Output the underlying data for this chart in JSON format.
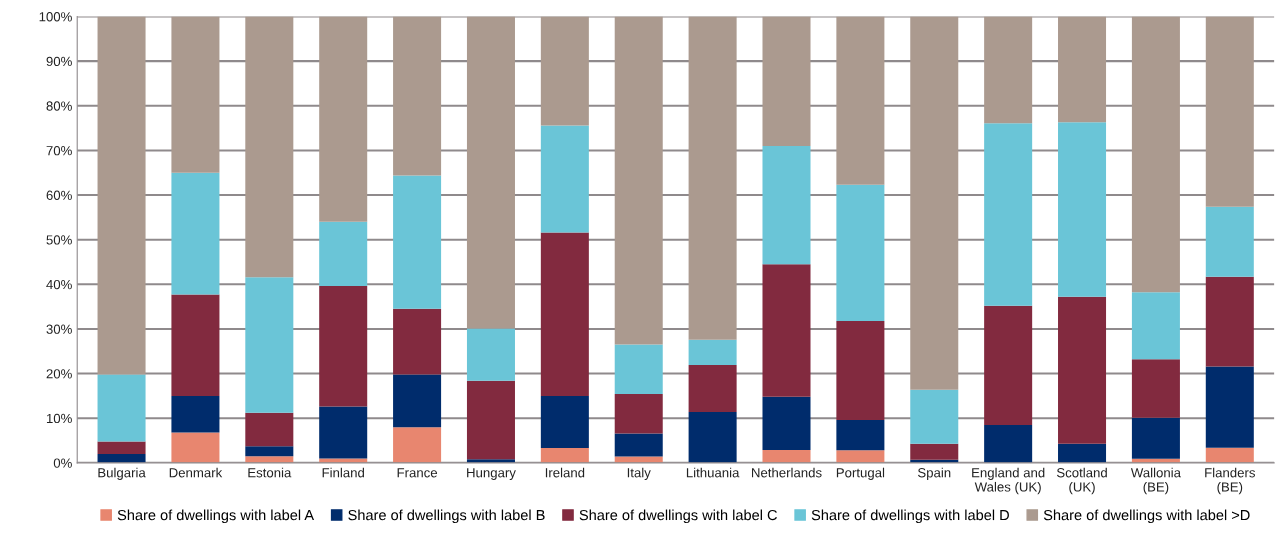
{
  "chart_data": {
    "type": "bar",
    "stacked": true,
    "categories": [
      "Bulgaria",
      "Denmark",
      "Estonia",
      "Finland",
      "France",
      "Hungary",
      "Ireland",
      "Italy",
      "Lithuania",
      "Netherlands",
      "Portugal",
      "Spain",
      "England and\nWales (UK)",
      "Scotland\n(UK)",
      "Wallonia\n(BE)",
      "Flanders\n(BE)"
    ],
    "series": [
      {
        "name": "Share of dwellings with label A",
        "color": "#e8866f",
        "values": [
          null,
          6.8,
          1.5,
          1,
          8,
          null,
          3.3,
          1.4,
          0,
          2.9,
          2.8,
          null,
          0,
          0,
          0.9,
          3.4
        ]
      },
      {
        "name": "Share of dwellings with label B",
        "color": "#002c6c",
        "values": [
          2,
          8.2,
          2.2,
          11.6,
          11.8,
          0.8,
          11.7,
          5.2,
          11.4,
          11.9,
          6.8,
          0.7,
          8.5,
          4.3,
          9.2,
          18.2
        ]
      },
      {
        "name": "Share of dwellings with label C",
        "color": "#822a3f",
        "values": [
          2.8,
          22.7,
          7.5,
          27,
          14.7,
          17.6,
          36.6,
          8.8,
          10.5,
          29.7,
          22.2,
          3.6,
          26.7,
          32.9,
          13.1,
          20.1
        ]
      },
      {
        "name": "Share of dwellings with label D",
        "color": "#6ac5d7",
        "values": [
          15,
          27.3,
          30.4,
          14.4,
          29.9,
          11.7,
          24,
          11.1,
          5.7,
          26.5,
          30.5,
          12.1,
          40.9,
          39.1,
          15,
          15.7
        ]
      },
      {
        "name": "Share of dwellings with label >D",
        "color": "#ab9a8f",
        "values": [
          80.2,
          35,
          58.4,
          46,
          35.6,
          69.9,
          24.4,
          73.5,
          72.4,
          29,
          37.7,
          83.6,
          23.9,
          23.7,
          61.8,
          42.6
        ]
      }
    ],
    "ylim": [
      0,
      100
    ],
    "yticks": [
      {
        "value": 0,
        "label": "0%"
      },
      {
        "value": 10,
        "label": "10%"
      },
      {
        "value": 20,
        "label": "20%"
      },
      {
        "value": 30,
        "label": "30%"
      },
      {
        "value": 40,
        "label": "40%"
      },
      {
        "value": 50,
        "label": "50%"
      },
      {
        "value": 60,
        "label": "60%"
      },
      {
        "value": 70,
        "label": "70%"
      },
      {
        "value": 80,
        "label": "80%"
      },
      {
        "value": 90,
        "label": "90%"
      },
      {
        "value": 100,
        "label": "100%"
      }
    ],
    "grid": "y",
    "legend": "bottom"
  }
}
